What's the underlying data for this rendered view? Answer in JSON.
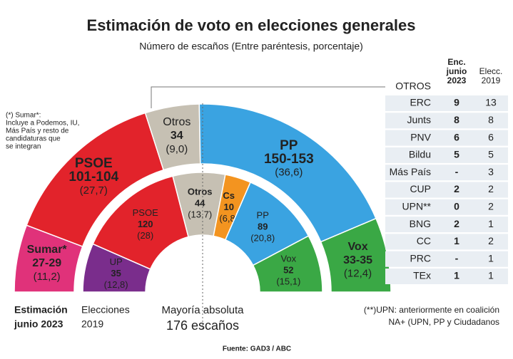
{
  "chart_data": {
    "type": "parliament",
    "title": "Estimación de voto en elecciones generales",
    "subtitle": "Número de escaños (Entre paréntesis, porcentaje)",
    "note": [
      "(*) Sumar*:",
      "Incluye a Podemos, IU,",
      "Más País y resto de",
      "candidaturas que",
      "se integran"
    ],
    "rings": [
      {
        "name": [
          "Estimación",
          "junio 2023"
        ],
        "segments": [
          {
            "name": "Sumar*",
            "seats": "27-29",
            "pct": 11.2,
            "pct_label": "(11,2)",
            "color": "#e0327a"
          },
          {
            "name": "PSOE",
            "seats": "101-104",
            "pct": 27.7,
            "pct_label": "(27,7)",
            "color": "#e2232b"
          },
          {
            "name": "Otros",
            "seats": 34,
            "pct": 9.0,
            "pct_label": "(9,0)",
            "color": "#c6c0b3"
          },
          {
            "name": "PP",
            "seats": "150-153",
            "pct": 36.6,
            "pct_label": "(36,6)",
            "color": "#3aa3e1"
          },
          {
            "name": "Vox",
            "seats": "33-35",
            "pct": 12.4,
            "pct_label": "(12,4)",
            "color": "#3aa845"
          }
        ]
      },
      {
        "name": [
          "Elecciones",
          "2019"
        ],
        "segments": [
          {
            "name": "UP",
            "seats": 35,
            "pct": 12.8,
            "pct_label": "(12,8)",
            "color": "#7a2d8c"
          },
          {
            "name": "PSOE",
            "seats": 120,
            "pct": 28,
            "pct_label": "(28)",
            "color": "#e2232b"
          },
          {
            "name": "Otros",
            "seats": 44,
            "pct": 13.7,
            "pct_label": "(13,7)",
            "color": "#c6c0b3"
          },
          {
            "name": "Cs",
            "seats": 10,
            "pct": 6.8,
            "pct_label": "(6,8)",
            "color": "#f39420"
          },
          {
            "name": "PP",
            "seats": 89,
            "pct": 20.8,
            "pct_label": "(20,8)",
            "color": "#3aa3e1"
          },
          {
            "name": "Vox",
            "seats": 52,
            "pct": 15.1,
            "pct_label": "(15,1)",
            "color": "#3aa845"
          }
        ]
      }
    ],
    "majority": [
      "Mayoría absoluta",
      "176 escaños"
    ],
    "table": {
      "title": "OTROS",
      "columns": [
        [
          "Enc.",
          "junio",
          "2023"
        ],
        [
          "Elecc.",
          "2019"
        ]
      ],
      "rows": [
        [
          "ERC",
          9,
          13
        ],
        [
          "Junts",
          8,
          8
        ],
        [
          "PNV",
          6,
          6
        ],
        [
          "Bildu",
          5,
          5
        ],
        [
          "Más País",
          "-",
          3
        ],
        [
          "CUP",
          2,
          2
        ],
        [
          "UPN**",
          0,
          2
        ],
        [
          "BNG",
          2,
          1
        ],
        [
          "CC",
          1,
          2
        ],
        [
          "PRC",
          "-",
          1
        ],
        [
          "TEx",
          1,
          1
        ]
      ]
    },
    "footnote": [
      "(**)UPN: anteriormente en coalición",
      "NA+ (UPN, PP y Ciudadanos"
    ],
    "source": "Fuente: GAD3  /  ABC"
  }
}
